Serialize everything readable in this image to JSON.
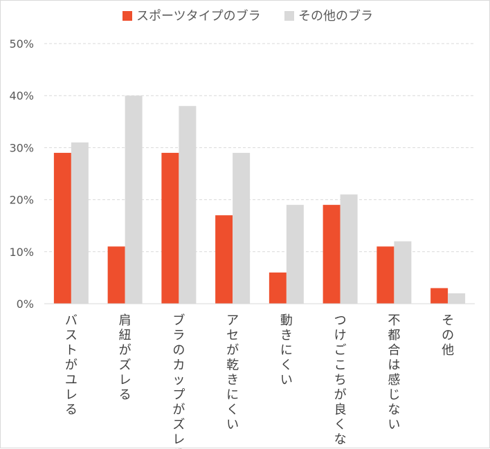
{
  "chart_data": {
    "type": "bar",
    "title": "",
    "xlabel": "",
    "ylabel": "",
    "ylim": [
      0,
      50
    ],
    "yticks": [
      0,
      10,
      20,
      30,
      40,
      50
    ],
    "ytick_format": "%",
    "grid": "horizontal dashed",
    "legend_position": "top",
    "categories": [
      "バストがユレる",
      "肩紐がズレる",
      "ブラのカップがズレる",
      "アセが乾きにくい",
      "動きにくい",
      "つけごこちが良くない",
      "不都合は感じない",
      "その他"
    ],
    "series": [
      {
        "name": "スポーツタイプのブラ",
        "color": "#ee4f2d",
        "values": [
          29,
          11,
          29,
          17,
          6,
          19,
          11,
          3
        ]
      },
      {
        "name": "その他のブラ",
        "color": "#d9d9d9",
        "values": [
          31,
          40,
          38,
          29,
          19,
          21,
          12,
          2
        ]
      }
    ]
  }
}
